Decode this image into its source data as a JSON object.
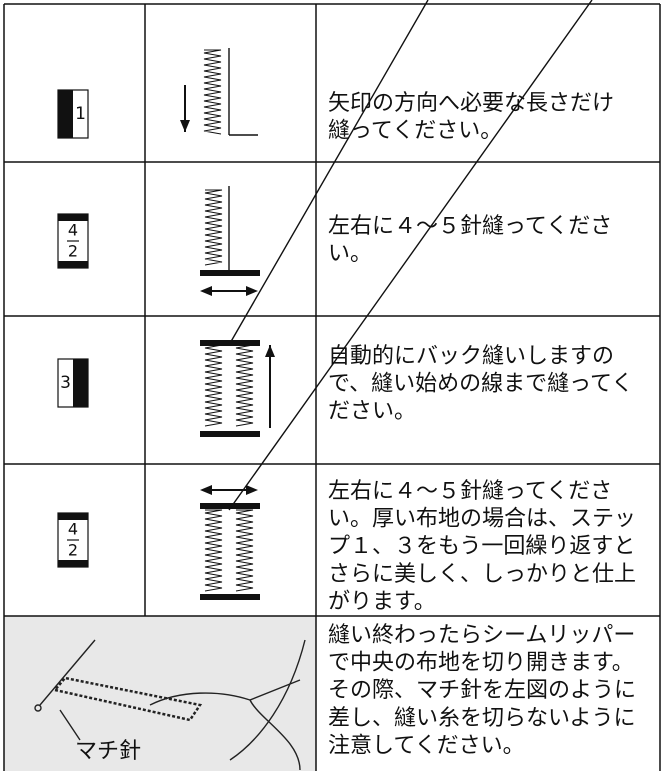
{
  "table": {
    "rows": [
      {
        "step": [
          "1"
        ],
        "lines": [
          "矢印の方向へ必要な長さだけ",
          "縫ってください。"
        ]
      },
      {
        "step": [
          "4",
          "2"
        ],
        "lines": [
          "左右に４～５針縫ってくださ",
          "い。"
        ]
      },
      {
        "step": [
          "3"
        ],
        "lines": [
          "自動的にバック縫いしますの",
          "で、縫い始めの線まで縫ってく",
          "ださい。"
        ]
      },
      {
        "step": [
          "4",
          "2"
        ],
        "lines": [
          "左右に４～５針縫ってくださ",
          "い。厚い布地の場合は、ステッ",
          "プ１、３をもう一回繰り返すと",
          "さらに美しく、しっかりと仕上",
          "がります。"
        ]
      },
      {
        "lines": [
          "縫い終わったらシームリッパー",
          "で中央の布地を切り開きます。",
          "その際、マチ針を左図のように",
          "差し、縫い糸を切らないように",
          "注意してください。"
        ]
      }
    ]
  },
  "figure": {
    "label": "マチ針"
  }
}
